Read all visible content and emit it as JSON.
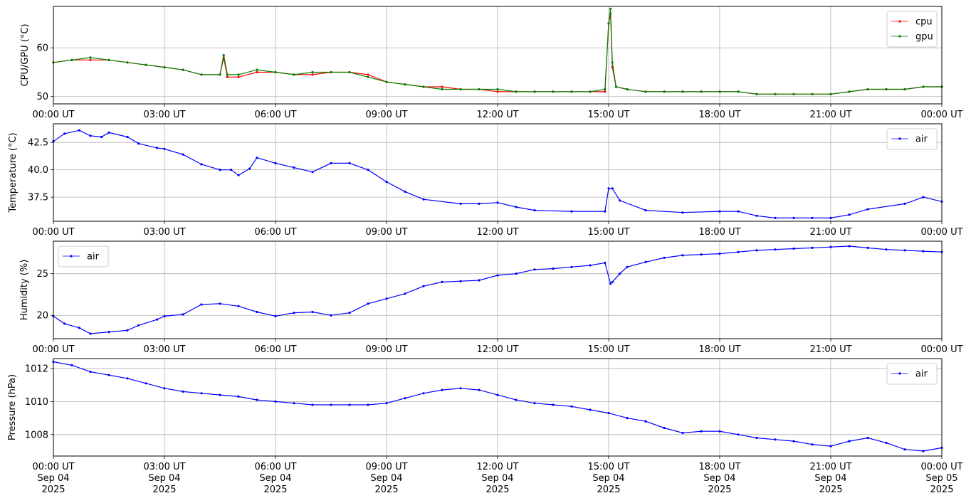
{
  "chart_data": [
    {
      "type": "line",
      "ylabel": "CPU/GPU (°C)",
      "xlim": [
        "00:00 UT",
        "00:00 UT"
      ],
      "ylim": [
        48.5,
        68.5
      ],
      "yticks": [
        50,
        60
      ],
      "grid": true,
      "legend_placement": "top-right",
      "x_tick_labels": [
        "00:00 UT",
        "03:00 UT",
        "06:00 UT",
        "09:00 UT",
        "12:00 UT",
        "15:00 UT",
        "18:00 UT",
        "21:00 UT",
        "00:00 UT"
      ],
      "series": [
        {
          "name": "cpu",
          "color": "#ff0000",
          "x_hours": [
            0,
            0.5,
            1,
            1.5,
            2,
            2.5,
            3,
            3.5,
            4,
            4.5,
            4.6,
            4.7,
            5,
            5.5,
            6,
            6.5,
            7,
            7.5,
            8,
            8.5,
            9,
            9.5,
            10,
            10.5,
            11,
            11.5,
            12,
            12.5,
            13,
            13.5,
            14,
            14.5,
            14.9,
            15.0,
            15.05,
            15.1,
            15.2,
            15.5,
            16,
            16.5,
            17,
            17.5,
            18,
            18.5,
            19,
            19.5,
            20,
            20.5,
            21,
            21.5,
            22,
            22.5,
            23,
            23.5,
            24
          ],
          "values": [
            57,
            57.5,
            57.5,
            57.5,
            57,
            56.5,
            56,
            55.5,
            54.5,
            54.5,
            58,
            54,
            54,
            55,
            55,
            54.5,
            54.5,
            55,
            55,
            54.5,
            53,
            52.5,
            52,
            52,
            51.5,
            51.5,
            51,
            51,
            51,
            51,
            51,
            51,
            51,
            65,
            67,
            56,
            52,
            51.5,
            51,
            51,
            51,
            51,
            51,
            51,
            50.5,
            50.5,
            50.5,
            50.5,
            50.5,
            51,
            51.5,
            51.5,
            51.5,
            52,
            52
          ]
        },
        {
          "name": "gpu",
          "color": "#008000",
          "x_hours": [
            0,
            0.5,
            1,
            1.5,
            2,
            2.5,
            3,
            3.5,
            4,
            4.5,
            4.6,
            4.7,
            5,
            5.5,
            6,
            6.5,
            7,
            7.5,
            8,
            8.5,
            9,
            9.5,
            10,
            10.5,
            11,
            11.5,
            12,
            12.5,
            13,
            13.5,
            14,
            14.5,
            14.9,
            15.0,
            15.05,
            15.1,
            15.2,
            15.5,
            16,
            16.5,
            17,
            17.5,
            18,
            18.5,
            19,
            19.5,
            20,
            20.5,
            21,
            21.5,
            22,
            22.5,
            23,
            23.5,
            24
          ],
          "values": [
            57,
            57.5,
            58,
            57.5,
            57,
            56.5,
            56,
            55.5,
            54.5,
            54.5,
            58.5,
            54.5,
            54.5,
            55.5,
            55,
            54.5,
            55,
            55,
            55,
            54,
            53,
            52.5,
            52,
            51.5,
            51.5,
            51.5,
            51.5,
            51,
            51,
            51,
            51,
            51,
            51.5,
            65,
            68,
            57,
            52,
            51.5,
            51,
            51,
            51,
            51,
            51,
            51,
            50.5,
            50.5,
            50.5,
            50.5,
            50.5,
            51,
            51.5,
            51.5,
            51.5,
            52,
            52
          ]
        }
      ]
    },
    {
      "type": "line",
      "ylabel": "Temperature (°C)",
      "ylim": [
        35.3,
        44.2
      ],
      "yticks": [
        37.5,
        40.0,
        42.5
      ],
      "ytick_labels": [
        "37.5",
        "40.0",
        "42.5"
      ],
      "grid": true,
      "legend_placement": "top-right",
      "x_tick_labels": [
        "00:00 UT",
        "03:00 UT",
        "06:00 UT",
        "09:00 UT",
        "12:00 UT",
        "15:00 UT",
        "18:00 UT",
        "21:00 UT",
        "00:00 UT"
      ],
      "series": [
        {
          "name": "air",
          "color": "#0000ff",
          "x_hours": [
            0,
            0.3,
            0.7,
            1.0,
            1.3,
            1.5,
            2.0,
            2.3,
            2.8,
            3.0,
            3.5,
            4.0,
            4.5,
            4.8,
            5.0,
            5.3,
            5.5,
            6.0,
            6.5,
            7.0,
            7.5,
            8.0,
            8.5,
            9.0,
            9.5,
            10.0,
            11.0,
            11.5,
            12.0,
            12.5,
            13.0,
            14.0,
            14.9,
            15.0,
            15.1,
            15.3,
            16.0,
            17.0,
            18.0,
            18.5,
            19.0,
            19.5,
            20.0,
            20.5,
            21.0,
            21.5,
            22.0,
            23.0,
            23.5,
            24.0
          ],
          "values": [
            42.6,
            43.3,
            43.6,
            43.1,
            43.0,
            43.4,
            43.0,
            42.4,
            42.0,
            41.9,
            41.4,
            40.5,
            40.0,
            40.0,
            39.5,
            40.1,
            41.1,
            40.6,
            40.2,
            39.8,
            40.6,
            40.6,
            40.0,
            38.9,
            38.0,
            37.3,
            36.9,
            36.9,
            37.0,
            36.6,
            36.3,
            36.2,
            36.2,
            38.3,
            38.3,
            37.2,
            36.3,
            36.1,
            36.2,
            36.2,
            35.8,
            35.6,
            35.6,
            35.6,
            35.6,
            35.9,
            36.4,
            36.9,
            37.5,
            37.1
          ]
        }
      ]
    },
    {
      "type": "line",
      "ylabel": "Humidity (%)",
      "ylim": [
        17.2,
        28.9
      ],
      "yticks": [
        20,
        25
      ],
      "grid": true,
      "legend_placement": "top-left",
      "x_tick_labels": [
        "00:00 UT",
        "03:00 UT",
        "06:00 UT",
        "09:00 UT",
        "12:00 UT",
        "15:00 UT",
        "18:00 UT",
        "21:00 UT",
        "00:00 UT"
      ],
      "series": [
        {
          "name": "air",
          "color": "#0000ff",
          "x_hours": [
            0,
            0.3,
            0.7,
            1.0,
            1.5,
            2.0,
            2.3,
            2.8,
            3.0,
            3.5,
            4.0,
            4.5,
            5.0,
            5.5,
            6.0,
            6.5,
            7.0,
            7.5,
            8.0,
            8.5,
            9.0,
            9.5,
            10.0,
            10.5,
            11.0,
            11.5,
            12.0,
            12.5,
            13.0,
            13.5,
            14.0,
            14.5,
            14.9,
            15.05,
            15.1,
            15.3,
            15.5,
            16.0,
            16.5,
            17.0,
            17.5,
            18.0,
            18.5,
            19.0,
            19.5,
            20.0,
            20.5,
            21.0,
            21.5,
            22.0,
            22.5,
            23.0,
            23.5,
            24.0
          ],
          "values": [
            19.9,
            19.0,
            18.5,
            17.8,
            18.0,
            18.2,
            18.8,
            19.5,
            19.9,
            20.1,
            21.3,
            21.4,
            21.1,
            20.4,
            19.9,
            20.3,
            20.4,
            20.0,
            20.3,
            21.4,
            22.0,
            22.6,
            23.5,
            24.0,
            24.1,
            24.2,
            24.8,
            25.0,
            25.5,
            25.6,
            25.8,
            26.0,
            26.3,
            23.8,
            24.0,
            25.0,
            25.8,
            26.4,
            26.9,
            27.2,
            27.3,
            27.4,
            27.6,
            27.8,
            27.9,
            28.0,
            28.1,
            28.2,
            28.3,
            28.1,
            27.9,
            27.8,
            27.7,
            27.6
          ]
        }
      ]
    },
    {
      "type": "line",
      "ylabel": "Pressure (hPa)",
      "ylim": [
        1006.7,
        1012.6
      ],
      "yticks": [
        1008,
        1010,
        1012
      ],
      "grid": true,
      "legend_placement": "top-right",
      "x_tick_labels": [
        "00:00 UT",
        "03:00 UT",
        "06:00 UT",
        "09:00 UT",
        "12:00 UT",
        "15:00 UT",
        "18:00 UT",
        "21:00 UT",
        "00:00 UT"
      ],
      "x_tick_sublabels": [
        "Sep 04",
        "Sep 04",
        "Sep 04",
        "Sep 04",
        "Sep 04",
        "Sep 04",
        "Sep 04",
        "Sep 04",
        "Sep 05"
      ],
      "x_tick_years": [
        "2025",
        "2025",
        "2025",
        "2025",
        "2025",
        "2025",
        "2025",
        "2025",
        "2025"
      ],
      "series": [
        {
          "name": "air",
          "color": "#0000ff",
          "x_hours": [
            0,
            0.5,
            1.0,
            1.5,
            2.0,
            2.5,
            3.0,
            3.5,
            4.0,
            4.5,
            5.0,
            5.5,
            6.0,
            6.5,
            7.0,
            7.5,
            8.0,
            8.5,
            9.0,
            9.5,
            10.0,
            10.5,
            11.0,
            11.5,
            12.0,
            12.5,
            13.0,
            13.5,
            14.0,
            14.5,
            15.0,
            15.5,
            16.0,
            16.5,
            17.0,
            17.5,
            18.0,
            18.5,
            19.0,
            19.5,
            20.0,
            20.5,
            21.0,
            21.5,
            22.0,
            22.5,
            23.0,
            23.5,
            24.0
          ],
          "values": [
            1012.4,
            1012.2,
            1011.8,
            1011.6,
            1011.4,
            1011.1,
            1010.8,
            1010.6,
            1010.5,
            1010.4,
            1010.3,
            1010.1,
            1010.0,
            1009.9,
            1009.8,
            1009.8,
            1009.8,
            1009.8,
            1009.9,
            1010.2,
            1010.5,
            1010.7,
            1010.8,
            1010.7,
            1010.4,
            1010.1,
            1009.9,
            1009.8,
            1009.7,
            1009.5,
            1009.3,
            1009.0,
            1008.8,
            1008.4,
            1008.1,
            1008.2,
            1008.2,
            1008.0,
            1007.8,
            1007.7,
            1007.6,
            1007.4,
            1007.3,
            1007.6,
            1007.8,
            1007.5,
            1007.1,
            1007.0,
            1007.2
          ]
        }
      ]
    }
  ]
}
